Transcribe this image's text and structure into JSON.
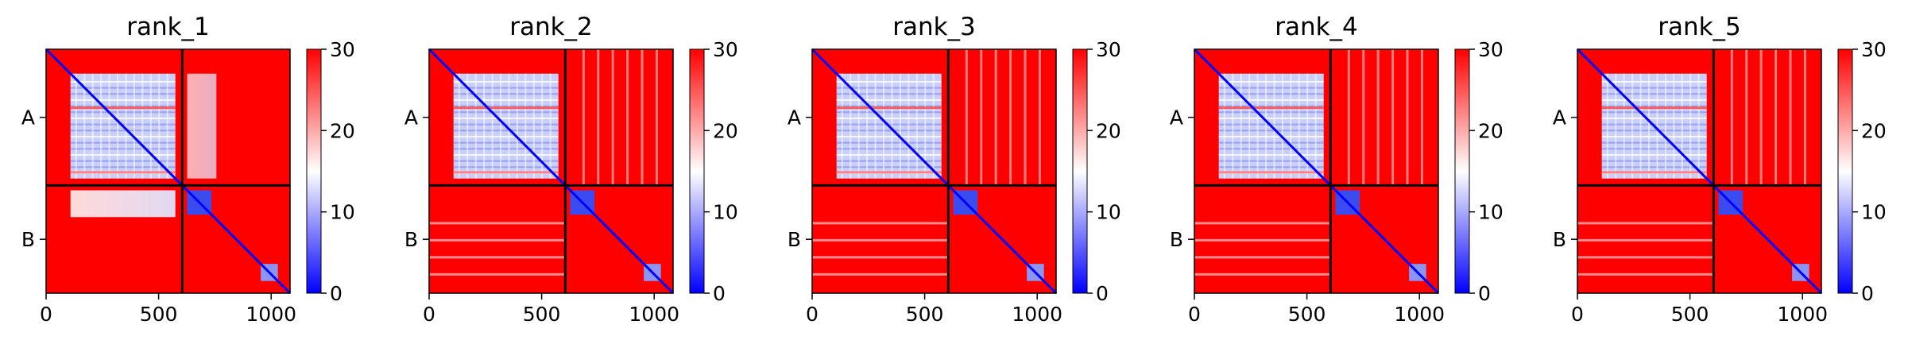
{
  "chart_data": {
    "type": "heatmap",
    "description_colormap": "bwr",
    "colormap": {
      "low": "#0000ff",
      "mid": "#ffffff",
      "high": "#ff0000"
    },
    "vmin": 0,
    "vmax": 30,
    "colorbar_ticks": [
      "0",
      "10",
      "20",
      "30"
    ],
    "x_ticks": [
      {
        "value": 0,
        "label": "0"
      },
      {
        "value": 500,
        "label": "500"
      },
      {
        "value": 1000,
        "label": "1000"
      }
    ],
    "x_range": [
      0,
      1084
    ],
    "chain_boundary": 605,
    "chains": [
      {
        "label": "A",
        "start": 0,
        "end": 605
      },
      {
        "label": "B",
        "start": 605,
        "end": 1084
      }
    ],
    "panels": [
      {
        "title": "rank_1",
        "off_diag_blue": true
      },
      {
        "title": "rank_2",
        "off_diag_blue": false
      },
      {
        "title": "rank_3",
        "off_diag_blue": false
      },
      {
        "title": "rank_4",
        "off_diag_blue": false
      },
      {
        "title": "rank_5",
        "off_diag_blue": false
      }
    ]
  }
}
